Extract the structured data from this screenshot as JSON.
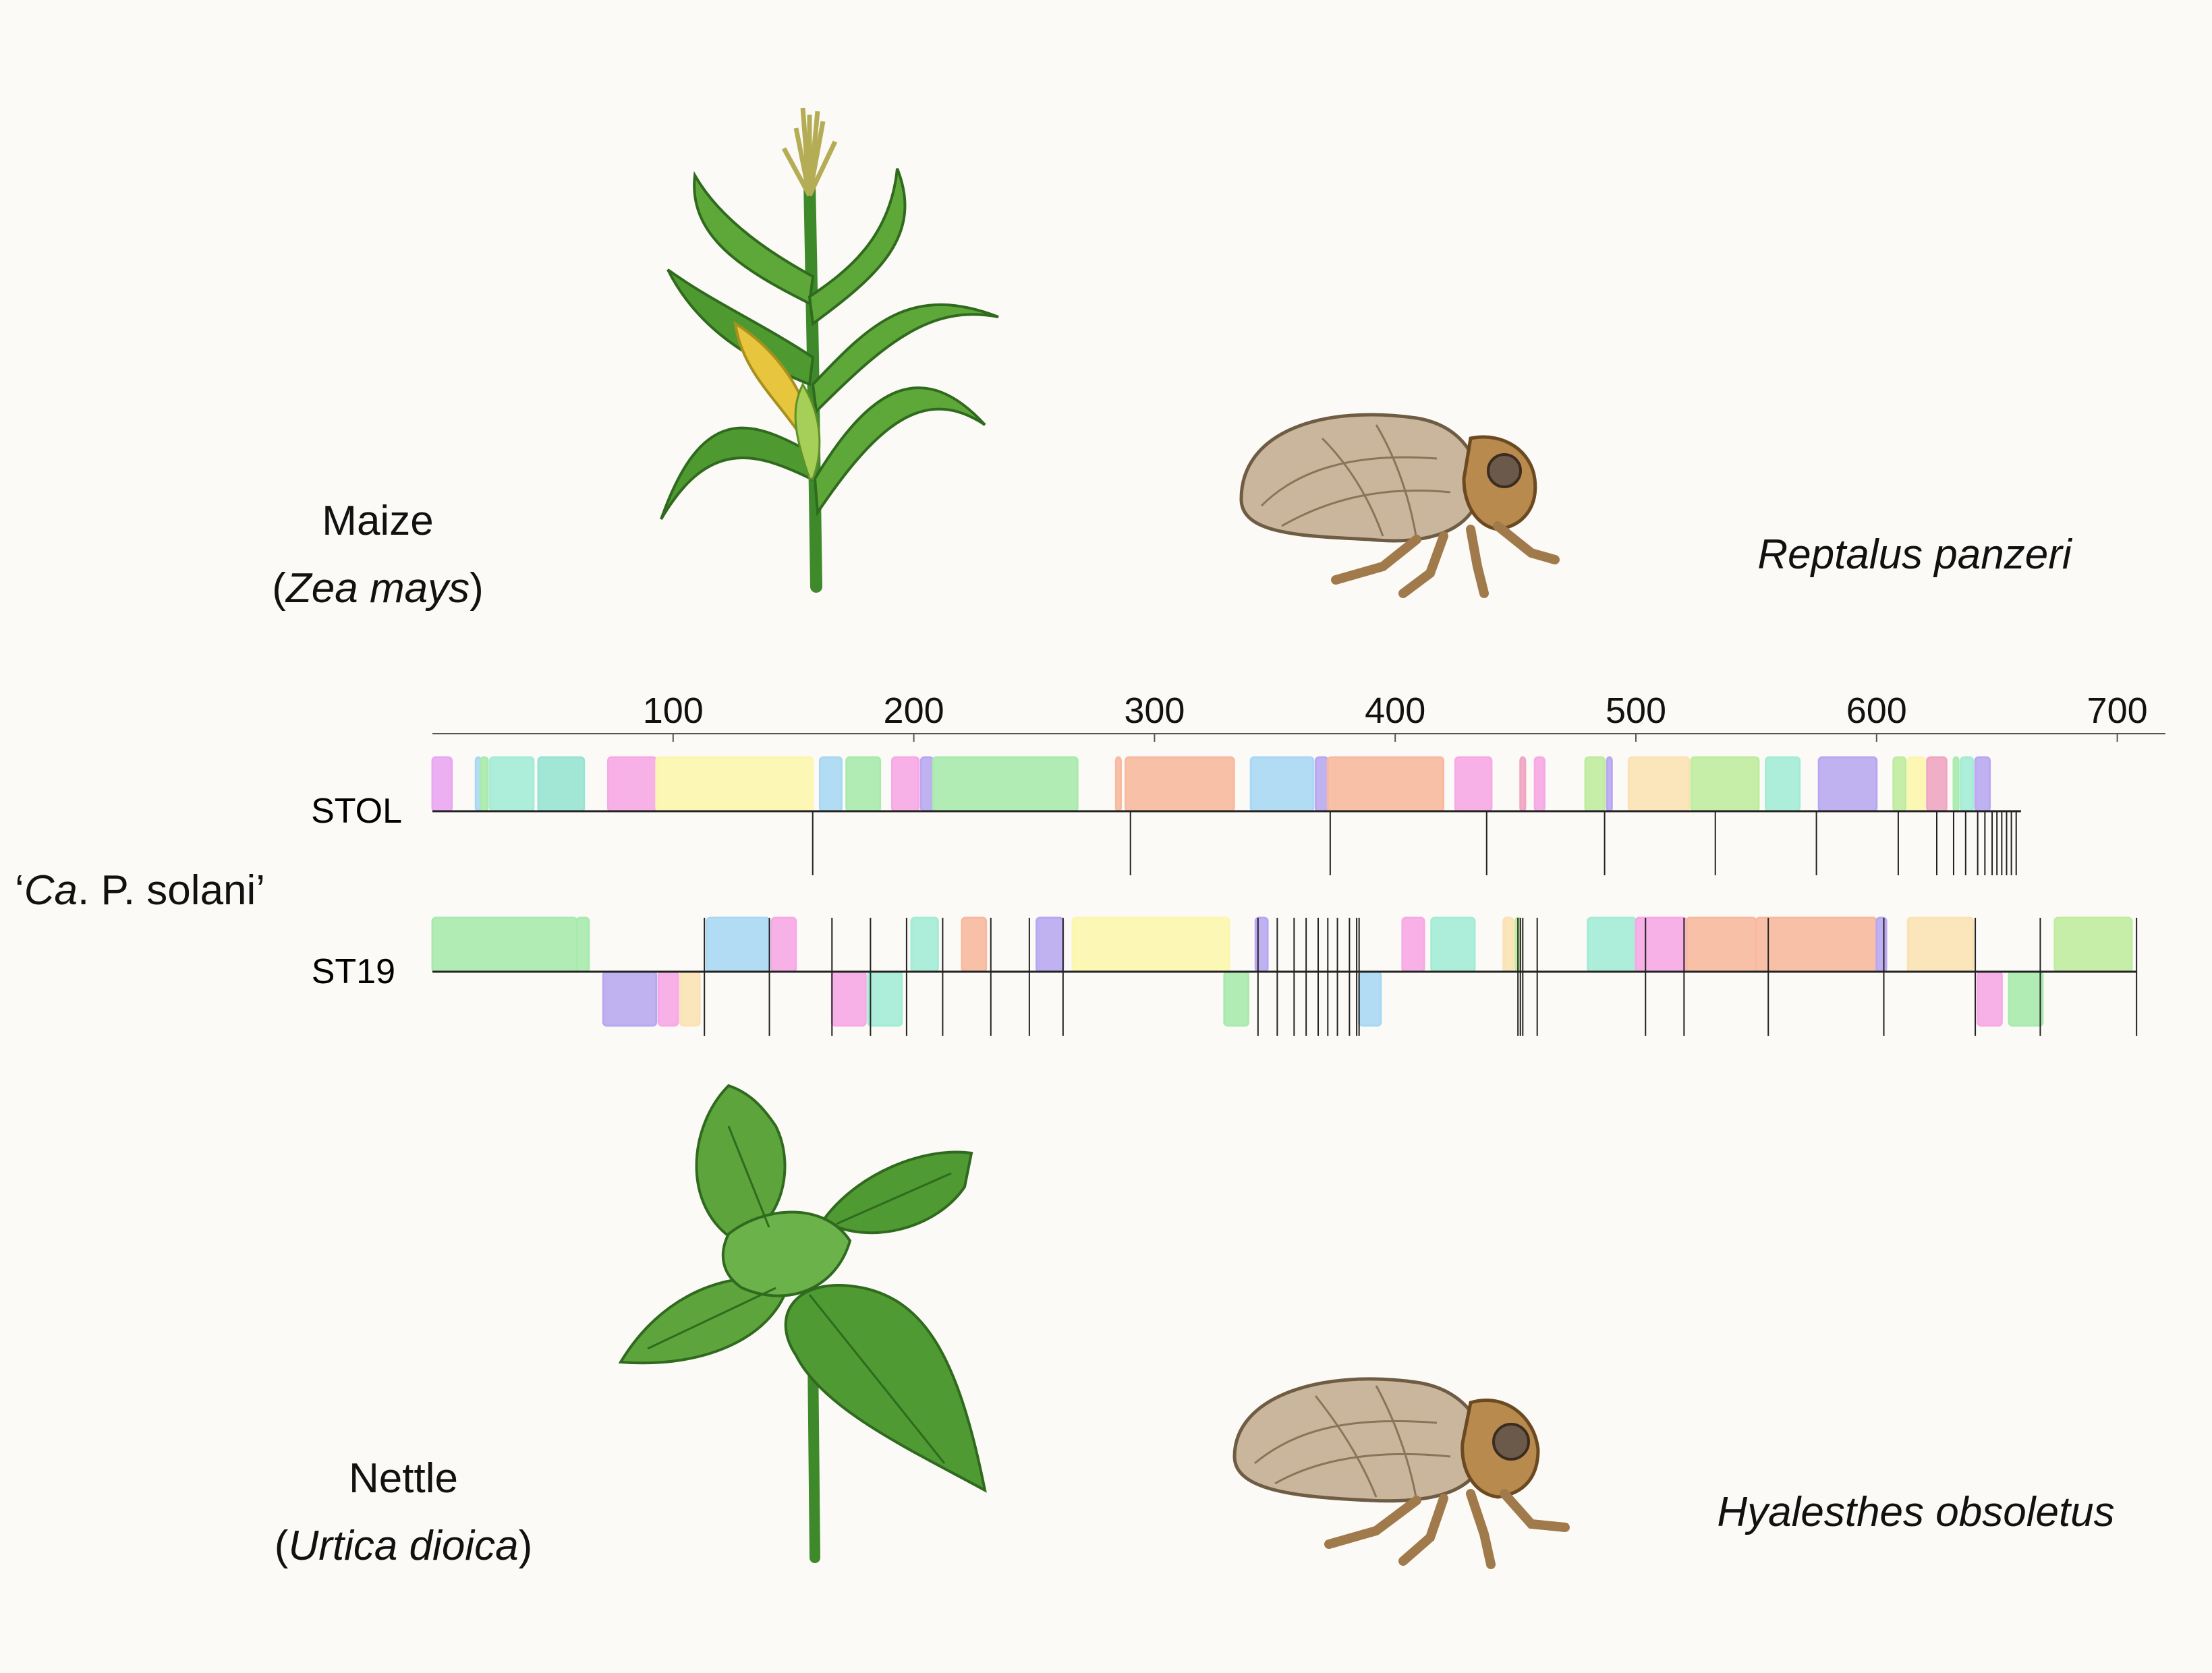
{
  "host_plants": {
    "maize": {
      "common": "Maize",
      "open": "(",
      "latin": "Zea mays",
      "close": ")"
    },
    "nettle": {
      "common": "Nettle",
      "open": "(",
      "latin": "Urtica dioica",
      "close": ")"
    }
  },
  "insect_vectors": {
    "reptalus": "Reptalus panzeri",
    "hyalesthes": "Hyalesthes obsoletus"
  },
  "organism_label": {
    "pre": "‘",
    "ital": "Ca",
    "post": ". P. solani’"
  },
  "genome_tracks": [
    {
      "name": "STOL"
    },
    {
      "name": "ST19"
    }
  ],
  "axis": {
    "ticks": [
      "100",
      "200",
      "300",
      "400",
      "500",
      "600",
      "700"
    ],
    "range_kb": [
      0,
      720
    ]
  },
  "colors": {
    "background": "#fcfaf6",
    "block_palette": [
      "#e9a6f2",
      "#a3ecd6",
      "#fdf6ae",
      "#a8d8f4",
      "#f7a9e6",
      "#a9eaae",
      "#b9a8f1",
      "#f8b9a0",
      "#fbe2b5",
      "#c0eca0",
      "#f0a6c2",
      "#98e3d2"
    ]
  }
}
